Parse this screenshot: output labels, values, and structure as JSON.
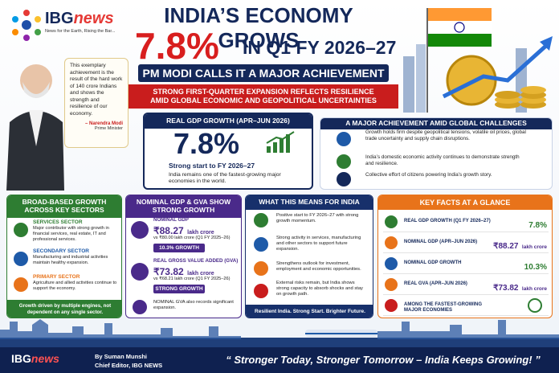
{
  "brand": {
    "name": "IBG",
    "name2": "news",
    "tagline": "News for the Earth, Rising the Bar..."
  },
  "header": {
    "title": "INDIA’S ECONOMY GROWS",
    "headline_value": "7.8%",
    "headline_rest": "IN Q1 FY 2026–27",
    "subtitle": "PM MODI CALLS IT A MAJOR ACHIEVEMENT",
    "banner": "STRONG FIRST-QUARTER EXPANSION REFLECTS RESILIENCE AMID GLOBAL ECONOMIC AND GEOPOLITICAL UNCERTAINTIES"
  },
  "quote": {
    "text": "This exemplary achievement is the result of the hard work of 140 crore Indians and shows the strength and resilience of our economy.",
    "author": "– Narendra Modi",
    "role": "Prime Minister"
  },
  "gdp_box": {
    "title": "REAL GDP GROWTH (APR–JUN 2026)",
    "value": "7.8%",
    "caption": "Strong start to FY 2026–27",
    "note": "India remains one of the fastest-growing major economies in the world."
  },
  "challenges": {
    "title": "A MAJOR ACHIEVEMENT AMID GLOBAL CHALLENGES",
    "items": [
      "Growth holds firm despite geopolitical tensions, volatile oil prices, global trade uncertainty and supply chain disruptions.",
      "India’s domestic economic activity continues to demonstrate strength and resilience.",
      "Collective effort of citizens powering India’s growth story."
    ]
  },
  "sectors": {
    "title": "BROAD-BASED GROWTH ACROSS KEY SECTORS",
    "items": [
      {
        "title": "SERVICES SECTOR",
        "text": "Major contributor with strong growth in financial services, real estate, IT and professional services."
      },
      {
        "title": "SECONDARY SECTOR",
        "text": "Manufacturing and industrial activities maintain healthy expansion."
      },
      {
        "title": "PRIMARY SECTOR",
        "text": "Agriculture and allied activities continue to support the economy."
      }
    ],
    "footer": "Growth driven by multiple engines, not dependent on any single sector."
  },
  "nominal": {
    "title": "NOMINAL GDP & GVA SHOW STRONG GROWTH",
    "items": [
      {
        "label": "NOMINAL GDP",
        "value": "₹88.27",
        "unit": "lakh crore",
        "compare": "vs ₹80.00 lakh crore (Q1 FY 2025–26)",
        "badge": "10.3% GROWTH"
      },
      {
        "label": "REAL GROSS VALUE ADDED (GVA)",
        "value": "₹73.82",
        "unit": "lakh crore",
        "compare": "vs ₹68.21 lakh crore (Q1 FY 2025–26)",
        "badge": "STRONG GROWTH"
      }
    ],
    "note": "NOMINAL GVA also records significant expansion."
  },
  "meaning": {
    "title": "WHAT THIS MEANS FOR INDIA",
    "items": [
      "Positive start to FY 2026–27 with strong growth momentum.",
      "Strong activity in services, manufacturing and other sectors to support future expansion.",
      "Strengthens outlook for investment, employment and economic opportunities.",
      "External risks remain, but India shows strong capacity to absorb shocks and stay on growth path."
    ],
    "footer": "Resilient India. Strong Start. Brighter Future."
  },
  "facts": {
    "title": "KEY FACTS AT A GLANCE",
    "rows": [
      {
        "label": "REAL GDP GROWTH (Q1 FY 2026–27)",
        "value": "7.8%"
      },
      {
        "label": "NOMINAL GDP (APR–JUN 2026)",
        "value": "₹88.27",
        "unit": "lakh crore"
      },
      {
        "label": "NOMINAL GDP GROWTH",
        "value": "10.3%"
      },
      {
        "label": "REAL GVA (APR–JUN 2026)",
        "value": "₹73.82",
        "unit": "lakh crore"
      },
      {
        "label": "AMONG THE FASTEST-GROWING MAJOR ECONOMIES"
      }
    ]
  },
  "footer": {
    "byline": "By Suman Munshi",
    "role": "Chief Editor, IBG NEWS",
    "slogan": "“ Stronger Today, Stronger Tomorrow – India Keeps Growing! ”"
  }
}
